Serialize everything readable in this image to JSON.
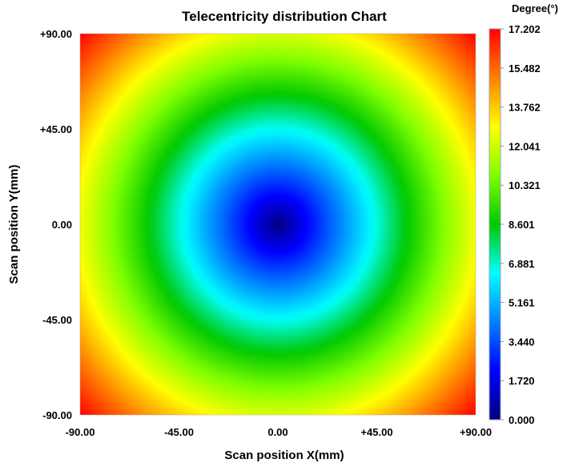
{
  "chart_data": {
    "type": "heatmap",
    "title": "Telecentricity distribution Chart",
    "xlabel": "Scan position X(mm)",
    "ylabel": "Scan position Y(mm)",
    "xlim": [
      -90,
      90
    ],
    "ylim": [
      -90,
      90
    ],
    "x_ticks": [
      "-90.00",
      "-45.00",
      "0.00",
      "+45.00",
      "+90.00"
    ],
    "y_ticks": [
      "+90.00",
      "+45.00",
      "0.00",
      "-45.00",
      "-90.00"
    ],
    "colorbar": {
      "label": "Degree(°)",
      "min": 0.0,
      "max": 17.202,
      "ticks": [
        "17.202",
        "15.482",
        "13.762",
        "12.041",
        "10.321",
        "8.601",
        "6.881",
        "5.161",
        "3.440",
        "1.720",
        "0.000"
      ]
    },
    "field": {
      "center": [
        0,
        0
      ],
      "value_at_center": 0.0,
      "value_at_corners": 17.202,
      "pattern": "radial"
    },
    "colormap": [
      "#00007f",
      "#0000ff",
      "#007fff",
      "#00ffff",
      "#00c800",
      "#7fff00",
      "#ffff00",
      "#ff7f00",
      "#ff0000"
    ]
  }
}
